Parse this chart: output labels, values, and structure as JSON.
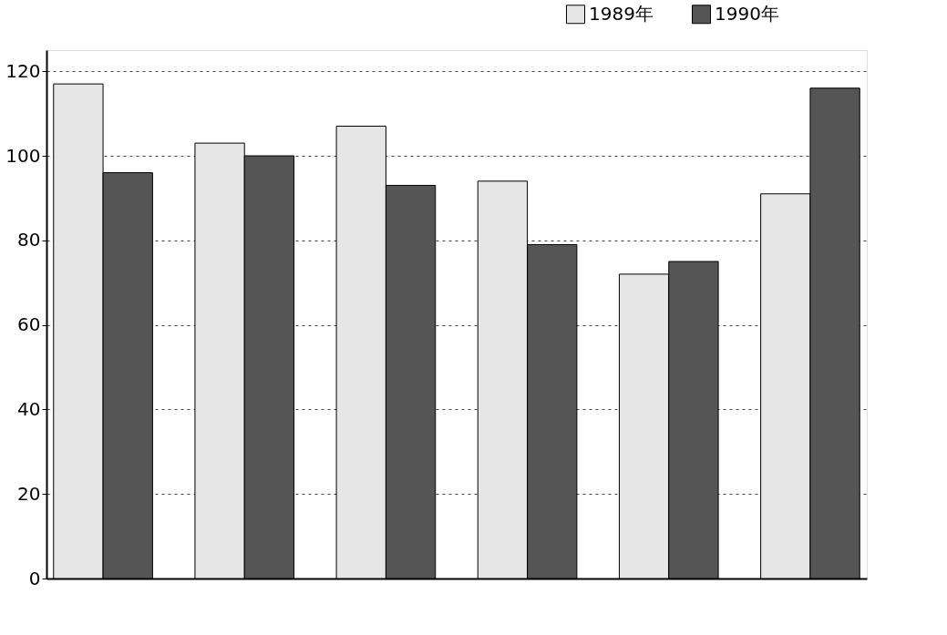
{
  "chart_data": {
    "type": "bar",
    "categories": [
      null,
      null,
      null,
      null,
      null,
      null
    ],
    "series": [
      {
        "name": "1989年",
        "color": "#e6e6e6",
        "values": [
          117,
          103,
          107,
          94,
          72,
          91
        ]
      },
      {
        "name": "1990年",
        "color": "#555555",
        "values": [
          96,
          100,
          93,
          79,
          75,
          116
        ]
      }
    ],
    "ylim": [
      0,
      125
    ],
    "yticks": [
      0,
      20,
      40,
      60,
      80,
      100,
      120
    ],
    "grid": "y",
    "legend": "top right",
    "tick_labels": "y"
  }
}
